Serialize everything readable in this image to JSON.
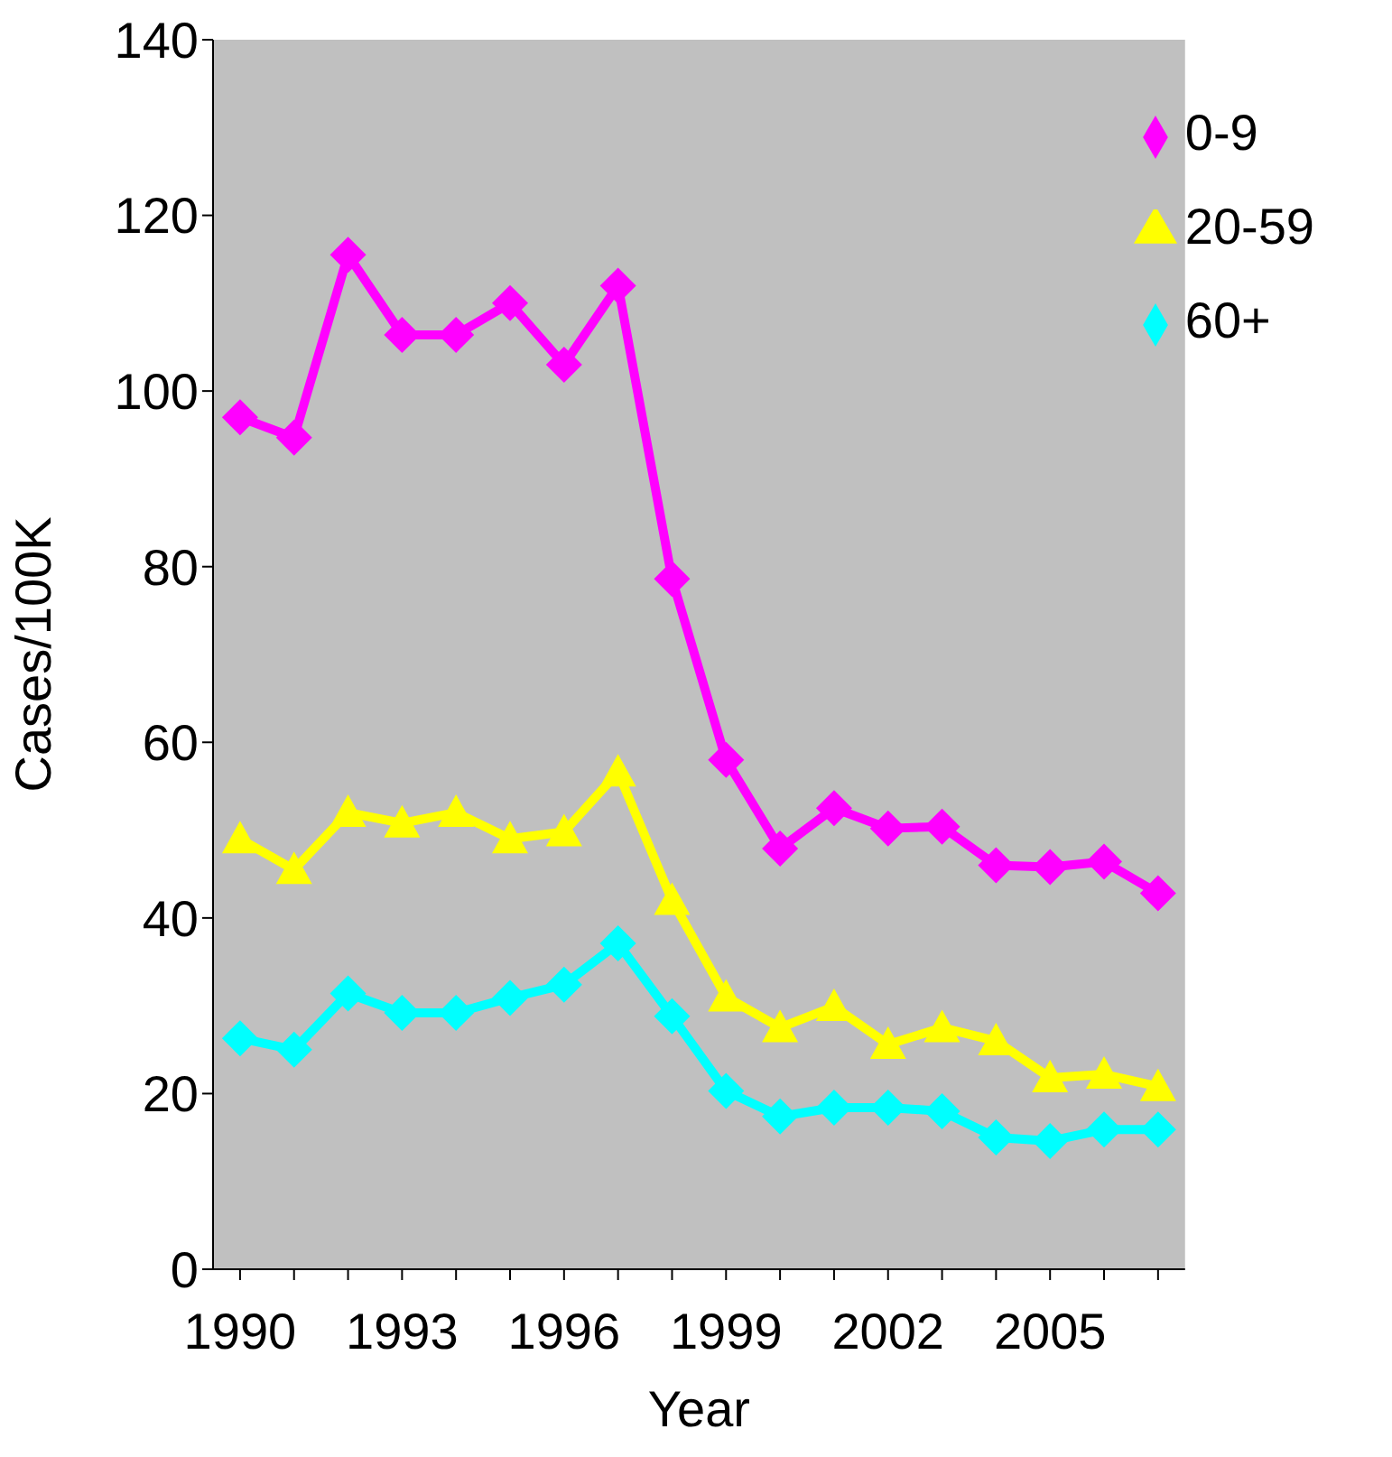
{
  "chart_data": {
    "type": "line",
    "xlabel": "Year",
    "ylabel": "Cases/100K",
    "categories": [
      "1990",
      null,
      null,
      "1993",
      null,
      null,
      "1996",
      null,
      null,
      "1999",
      null,
      null,
      "2002",
      null,
      null,
      "2005",
      null,
      null
    ],
    "series": [
      {
        "name": "0-9",
        "color": "#ff00ff",
        "marker": "diamond",
        "values": [
          97,
          94.7,
          115.5,
          106.4,
          106.4,
          110,
          103,
          112,
          78.6,
          58,
          47.9,
          52.5,
          50.2,
          50.4,
          46,
          45.8,
          46.4,
          42.8
        ]
      },
      {
        "name": "20-59",
        "color": "#ffff00",
        "marker": "triangle",
        "values": [
          49,
          45.5,
          52,
          50.8,
          52,
          49,
          49.8,
          56.6,
          42,
          31,
          27.5,
          29.9,
          25.6,
          27.5,
          26,
          21.8,
          22.2,
          20.8
        ]
      },
      {
        "name": "60+",
        "color": "#00ffff",
        "marker": "diamond",
        "values": [
          26.3,
          25,
          31.4,
          29.2,
          29.2,
          30.9,
          32.4,
          37.1,
          28.8,
          20.3,
          17.4,
          18.4,
          18.4,
          18,
          15,
          14.6,
          15.9,
          15.9
        ]
      }
    ],
    "ylim": [
      0,
      140
    ],
    "yticks": [
      0,
      20,
      40,
      60,
      80,
      100,
      120,
      140
    ],
    "grid": false,
    "legend": "top right",
    "line_style": "solid"
  }
}
